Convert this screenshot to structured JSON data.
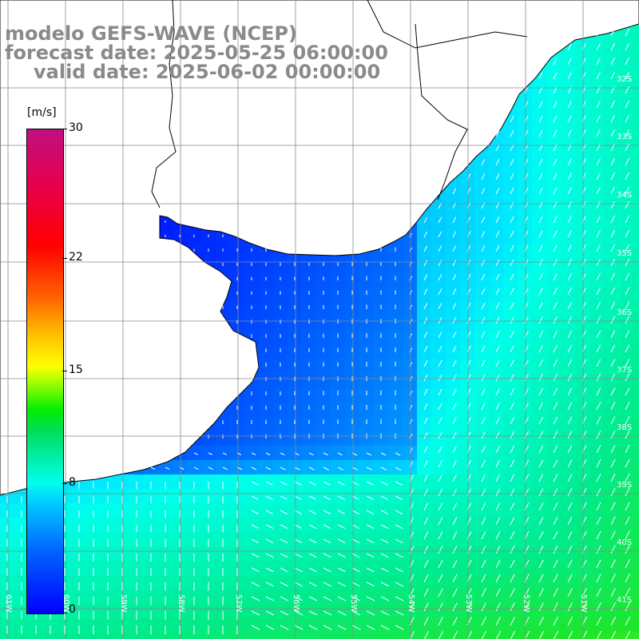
{
  "title": {
    "line1": "modelo GEFS-WAVE (NCEP)",
    "line2": "forecast date: 2025-05-25 06:00:00",
    "line3": "valid date: 2025-06-02 00:00:00"
  },
  "colorbar": {
    "unit": "[m/s]",
    "min": 0,
    "max": 30,
    "ticks": [
      "30",
      "22",
      "15",
      "8",
      "0"
    ],
    "tick_values": [
      30,
      22,
      15,
      8,
      0
    ]
  },
  "map": {
    "lat_labels": [
      "32S",
      "33S",
      "34S",
      "35S",
      "36S",
      "37S",
      "38S",
      "39S",
      "40S",
      "41S"
    ],
    "lon_labels": [
      "61W",
      "60W",
      "59W",
      "58W",
      "57W",
      "56W",
      "55W",
      "54W",
      "53W",
      "52W",
      "51W"
    ],
    "colors": {
      "land": "#ffffff",
      "coast": "#000000",
      "grid": "#888888",
      "calm": "#0033ff",
      "moderate": "#00ccff",
      "strong": "#33ff66"
    }
  }
}
